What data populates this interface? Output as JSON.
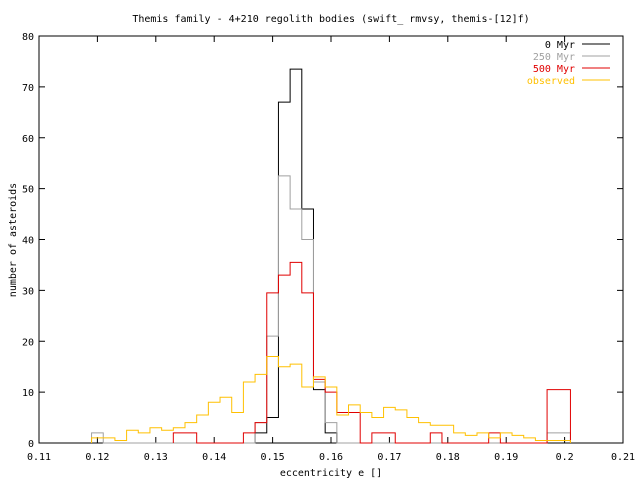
{
  "chart_data": {
    "type": "histogram-step",
    "title": "Themis family - 4+210 regolith bodies (swift_ rmvsy, themis-[12]f)",
    "xlabel": "eccentricity e []",
    "ylabel": "number of asteroids",
    "xlim": [
      0.11,
      0.21
    ],
    "ylim": [
      0,
      80
    ],
    "xticks": [
      0.11,
      0.12,
      0.13,
      0.14,
      0.15,
      0.16,
      0.17,
      0.18,
      0.19,
      0.2,
      0.21
    ],
    "xtick_labels": [
      "0.11",
      "0.12",
      "0.13",
      "0.14",
      "0.15",
      "0.16",
      "0.17",
      "0.18",
      "0.19",
      "0.2",
      "0.21"
    ],
    "yticks": [
      0,
      10,
      20,
      30,
      40,
      50,
      60,
      70,
      80
    ],
    "ytick_labels": [
      "0",
      "10",
      "20",
      "30",
      "40",
      "50",
      "60",
      "70",
      "80"
    ],
    "grid": false,
    "legend": "top-right",
    "series": [
      {
        "name": "0 Myr",
        "color": "#000000",
        "x": [
          0.145,
          0.147,
          0.149,
          0.151,
          0.153,
          0.155,
          0.157,
          0.159,
          0.161
        ],
        "y": [
          0,
          2,
          5,
          67,
          73.5,
          46,
          10.5,
          2,
          0
        ]
      },
      {
        "name": "250 Myr",
        "color": "#a0a0a0",
        "x": [
          0.119,
          0.121,
          0.145,
          0.147,
          0.149,
          0.151,
          0.153,
          0.155,
          0.157,
          0.159,
          0.161,
          0.163,
          0.197,
          0.201
        ],
        "y": [
          2,
          0,
          0,
          4,
          21,
          52.5,
          46,
          40,
          12,
          4,
          0,
          0,
          2,
          0
        ]
      },
      {
        "name": "500 Myr",
        "color": "#e00000",
        "x": [
          0.133,
          0.137,
          0.143,
          0.145,
          0.147,
          0.149,
          0.151,
          0.153,
          0.155,
          0.157,
          0.159,
          0.161,
          0.165,
          0.167,
          0.171,
          0.175,
          0.177,
          0.179,
          0.187,
          0.189,
          0.197,
          0.201
        ],
        "y": [
          2,
          0,
          0,
          2,
          4,
          29.5,
          33,
          35.5,
          29.5,
          12.5,
          10,
          6,
          0,
          2,
          0,
          0,
          2,
          0,
          2,
          0,
          10.5,
          0
        ]
      },
      {
        "name": "observed",
        "color": "#ffc000",
        "x": [
          0.119,
          0.121,
          0.123,
          0.125,
          0.127,
          0.129,
          0.131,
          0.133,
          0.135,
          0.137,
          0.139,
          0.141,
          0.143,
          0.145,
          0.147,
          0.149,
          0.151,
          0.153,
          0.155,
          0.157,
          0.159,
          0.161,
          0.163,
          0.165,
          0.167,
          0.169,
          0.171,
          0.173,
          0.175,
          0.177,
          0.179,
          0.181,
          0.183,
          0.185,
          0.187,
          0.189,
          0.191,
          0.193,
          0.195,
          0.197,
          0.199,
          0.201
        ],
        "y": [
          1,
          1,
          0.5,
          2.5,
          2,
          3,
          2.5,
          3,
          4,
          5.5,
          8,
          9,
          6,
          12,
          13.5,
          17,
          15,
          15.5,
          11,
          13,
          11,
          5.5,
          7.5,
          6,
          5,
          7,
          6.5,
          5,
          4,
          3.5,
          3.5,
          2,
          1.5,
          2,
          1,
          2,
          1.5,
          1,
          0.5,
          0.5,
          0.5,
          0
        ]
      }
    ]
  }
}
